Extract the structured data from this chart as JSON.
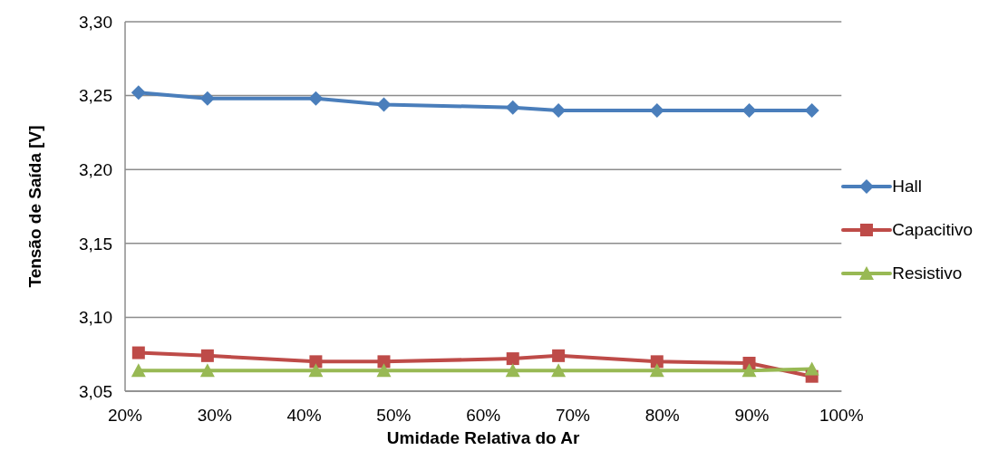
{
  "chart_data": {
    "type": "line",
    "xlabel": "Umidade Relativa do Ar",
    "ylabel": "Tensão de Saída [V]",
    "xlim": [
      20,
      100
    ],
    "xticks": [
      {
        "value": 20,
        "label": "20%"
      },
      {
        "value": 30,
        "label": "30%"
      },
      {
        "value": 40,
        "label": "40%"
      },
      {
        "value": 50,
        "label": "50%"
      },
      {
        "value": 60,
        "label": "60%"
      },
      {
        "value": 70,
        "label": "70%"
      },
      {
        "value": 80,
        "label": "80%"
      },
      {
        "value": 90,
        "label": "90%"
      },
      {
        "value": 100,
        "label": "100%"
      }
    ],
    "ylim": [
      3.05,
      3.3
    ],
    "yticks": [
      {
        "value": 3.05,
        "label": "3,05"
      },
      {
        "value": 3.1,
        "label": "3,10"
      },
      {
        "value": 3.15,
        "label": "3,15"
      },
      {
        "value": 3.2,
        "label": "3,20"
      },
      {
        "value": 3.25,
        "label": "3,25"
      },
      {
        "value": 3.3,
        "label": "3,30"
      }
    ],
    "x": [
      21.5,
      29.2,
      41.3,
      48.9,
      63.3,
      68.4,
      79.4,
      89.7,
      96.7
    ],
    "series": [
      {
        "name": "Hall",
        "color": "#4a7ebb",
        "marker": "diamond",
        "values": [
          3.252,
          3.248,
          3.248,
          3.244,
          3.242,
          3.24,
          3.24,
          3.24,
          3.24
        ]
      },
      {
        "name": "Capacitivo",
        "color": "#be4b48",
        "marker": "square",
        "values": [
          3.076,
          3.074,
          3.07,
          3.07,
          3.072,
          3.074,
          3.07,
          3.069,
          3.06
        ]
      },
      {
        "name": "Resistivo",
        "color": "#98b954",
        "marker": "triangle",
        "values": [
          3.064,
          3.064,
          3.064,
          3.064,
          3.064,
          3.064,
          3.064,
          3.064,
          3.065
        ]
      }
    ],
    "grid": "y",
    "legend": "right",
    "line_style": "solid"
  }
}
